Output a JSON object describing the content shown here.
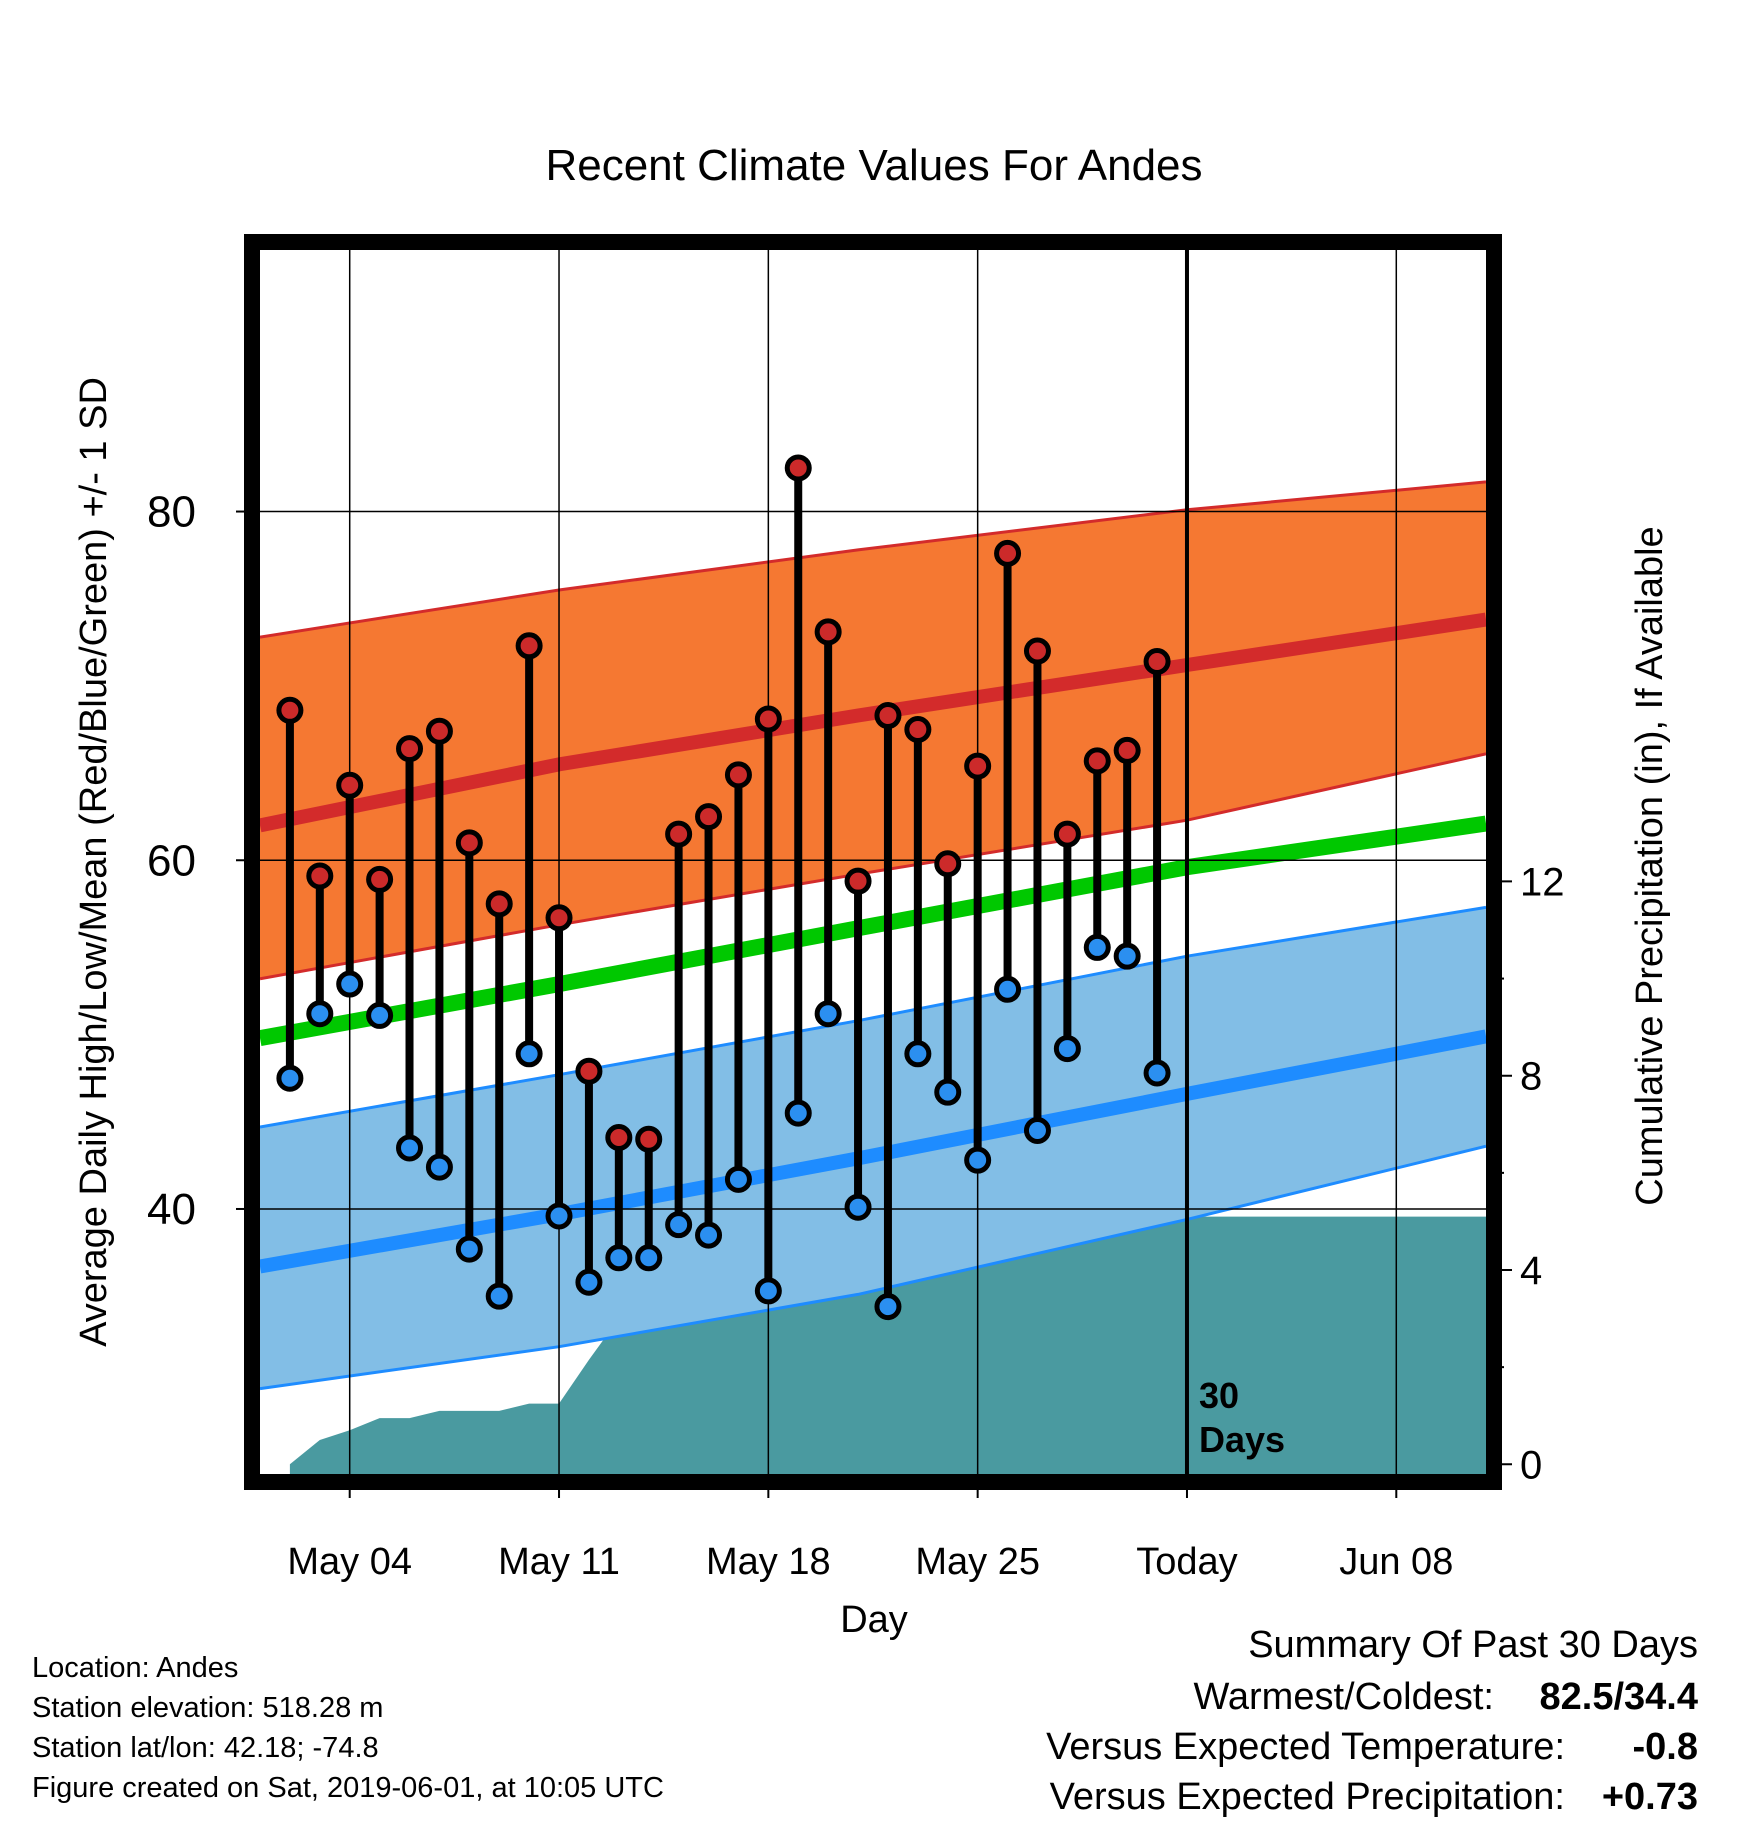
{
  "chart_data": {
    "type": "line",
    "title": "Recent Climate Values For Andes",
    "xlabel": "Day",
    "ylabel": "Average Daily High/Low/Mean (Red/Blue/Green) +/- 1 SD",
    "y2label": "Cumulative Precipitation (in), If Available",
    "ylim": [
      24.8,
      95
    ],
    "y2lim": [
      -0.2,
      25
    ],
    "yticks": [
      "40",
      "60",
      "80"
    ],
    "y2ticks": [
      "0",
      "4",
      "8",
      "12"
    ],
    "x_range": [
      "2019-05-01",
      "2019-06-11"
    ],
    "x_ticks": [
      {
        "date": "2019-05-04",
        "label": "May 04"
      },
      {
        "date": "2019-05-11",
        "label": "May 11"
      },
      {
        "date": "2019-05-18",
        "label": "May 18"
      },
      {
        "date": "2019-05-25",
        "label": "May 25"
      },
      {
        "date": "2019-06-01",
        "label": "Today"
      },
      {
        "date": "2019-06-08",
        "label": "Jun 08"
      }
    ],
    "today_marker": {
      "date": "2019-06-01",
      "label_line1": "30",
      "label_line2": "Days"
    },
    "grid": true,
    "daily": [
      {
        "date": "2019-05-02",
        "high": 68.6,
        "low": 47.5
      },
      {
        "date": "2019-05-03",
        "high": 59.1,
        "low": 51.2
      },
      {
        "date": "2019-05-04",
        "high": 64.3,
        "low": 52.9
      },
      {
        "date": "2019-05-05",
        "high": 58.9,
        "low": 51.1
      },
      {
        "date": "2019-05-06",
        "high": 66.4,
        "low": 43.5
      },
      {
        "date": "2019-05-07",
        "high": 67.4,
        "low": 42.4
      },
      {
        "date": "2019-05-08",
        "high": 61.0,
        "low": 37.7
      },
      {
        "date": "2019-05-09",
        "high": 57.5,
        "low": 35.0
      },
      {
        "date": "2019-05-10",
        "high": 72.3,
        "low": 48.9
      },
      {
        "date": "2019-05-11",
        "high": 56.7,
        "low": 39.6
      },
      {
        "date": "2019-05-12",
        "high": 47.9,
        "low": 35.8
      },
      {
        "date": "2019-05-13",
        "high": 44.1,
        "low": 37.2
      },
      {
        "date": "2019-05-14",
        "high": 44.0,
        "low": 37.2
      },
      {
        "date": "2019-05-15",
        "high": 61.5,
        "low": 39.1
      },
      {
        "date": "2019-05-16",
        "high": 62.5,
        "low": 38.5
      },
      {
        "date": "2019-05-17",
        "high": 64.9,
        "low": 41.7
      },
      {
        "date": "2019-05-18",
        "high": 68.1,
        "low": 35.3
      },
      {
        "date": "2019-05-19",
        "high": 82.5,
        "low": 45.5
      },
      {
        "date": "2019-05-20",
        "high": 73.1,
        "low": 51.2
      },
      {
        "date": "2019-05-21",
        "high": 58.8,
        "low": 40.1
      },
      {
        "date": "2019-05-22",
        "high": 68.3,
        "low": 34.4
      },
      {
        "date": "2019-05-23",
        "high": 67.5,
        "low": 48.9
      },
      {
        "date": "2019-05-24",
        "high": 59.8,
        "low": 46.7
      },
      {
        "date": "2019-05-25",
        "high": 65.4,
        "low": 42.8
      },
      {
        "date": "2019-05-26",
        "high": 77.6,
        "low": 52.6
      },
      {
        "date": "2019-05-27",
        "high": 72.0,
        "low": 44.5
      },
      {
        "date": "2019-05-28",
        "high": 61.5,
        "low": 49.2
      },
      {
        "date": "2019-05-29",
        "high": 65.7,
        "low": 55.0
      },
      {
        "date": "2019-05-30",
        "high": 66.3,
        "low": 54.5
      },
      {
        "date": "2019-05-31",
        "high": 71.4,
        "low": 47.8
      }
    ],
    "normals": {
      "dates": [
        "2019-05-01",
        "2019-05-11",
        "2019-05-21",
        "2019-06-01",
        "2019-06-11"
      ],
      "high_mean": [
        62.0,
        65.5,
        68.3,
        71.2,
        73.8
      ],
      "high_upper": [
        72.8,
        75.5,
        77.8,
        80.1,
        81.7
      ],
      "high_lower": [
        53.2,
        56.3,
        59.2,
        62.3,
        66.1
      ],
      "mean": [
        49.8,
        52.9,
        56.1,
        59.6,
        62.1
      ],
      "low_mean": [
        36.7,
        39.7,
        42.9,
        46.6,
        49.9
      ],
      "low_upper": [
        44.7,
        47.7,
        50.8,
        54.5,
        57.3
      ],
      "low_lower": [
        29.7,
        32.1,
        35.1,
        39.4,
        43.6
      ]
    },
    "precip_cumulative": [
      {
        "date": "2019-05-02",
        "value": 0.0
      },
      {
        "date": "2019-05-03",
        "value": 0.5
      },
      {
        "date": "2019-05-04",
        "value": 0.7
      },
      {
        "date": "2019-05-05",
        "value": 0.95
      },
      {
        "date": "2019-05-06",
        "value": 0.95
      },
      {
        "date": "2019-05-07",
        "value": 1.1
      },
      {
        "date": "2019-05-08",
        "value": 1.1
      },
      {
        "date": "2019-05-09",
        "value": 1.1
      },
      {
        "date": "2019-05-10",
        "value": 1.25
      },
      {
        "date": "2019-05-11",
        "value": 1.25
      },
      {
        "date": "2019-05-12",
        "value": 2.15
      },
      {
        "date": "2019-05-13",
        "value": 3.0
      },
      {
        "date": "2019-05-14",
        "value": 3.1
      },
      {
        "date": "2019-05-15",
        "value": 3.15
      },
      {
        "date": "2019-05-16",
        "value": 3.15
      },
      {
        "date": "2019-05-17",
        "value": 3.4
      },
      {
        "date": "2019-05-18",
        "value": 3.4
      },
      {
        "date": "2019-05-19",
        "value": 3.55
      },
      {
        "date": "2019-05-20",
        "value": 4.05
      },
      {
        "date": "2019-05-21",
        "value": 4.05
      },
      {
        "date": "2019-05-22",
        "value": 4.05
      },
      {
        "date": "2019-05-23",
        "value": 4.15
      },
      {
        "date": "2019-05-24",
        "value": 4.15
      },
      {
        "date": "2019-05-25",
        "value": 4.35
      },
      {
        "date": "2019-05-26",
        "value": 4.35
      },
      {
        "date": "2019-05-27",
        "value": 4.35
      },
      {
        "date": "2019-05-28",
        "value": 4.6
      },
      {
        "date": "2019-05-29",
        "value": 4.75
      },
      {
        "date": "2019-05-30",
        "value": 5.1
      },
      {
        "date": "2019-05-31",
        "value": 5.1
      },
      {
        "date": "2019-06-11",
        "value": 5.1
      }
    ],
    "colors": {
      "high_band": "#f57832",
      "high_line": "#d32b2b",
      "mean_line": "#00c800",
      "low_band": "#82bee6",
      "low_line": "#1e8cff",
      "precip": "#4a9aa0",
      "high_marker": "#cc2a2a",
      "low_marker": "#2b8ff0"
    }
  },
  "info": {
    "location": "Location: Andes",
    "elevation": "Station elevation: 518.28 m",
    "latlon": "Station lat/lon: 42.18; -74.8",
    "created": "Figure created on Sat, 2019-06-01, at 10:05 UTC"
  },
  "summary": {
    "heading": "Summary Of Past 30 Days",
    "warmest_label": "Warmest/Coldest:",
    "warmest_value": "82.5/34.4",
    "temp_label": "Versus Expected Temperature:",
    "temp_value": "-0.8",
    "precip_label": "Versus Expected Precipitation:",
    "precip_value": "+0.73",
    "temp_value_color": "#1e8cff",
    "precip_value_color": "#00c800"
  }
}
